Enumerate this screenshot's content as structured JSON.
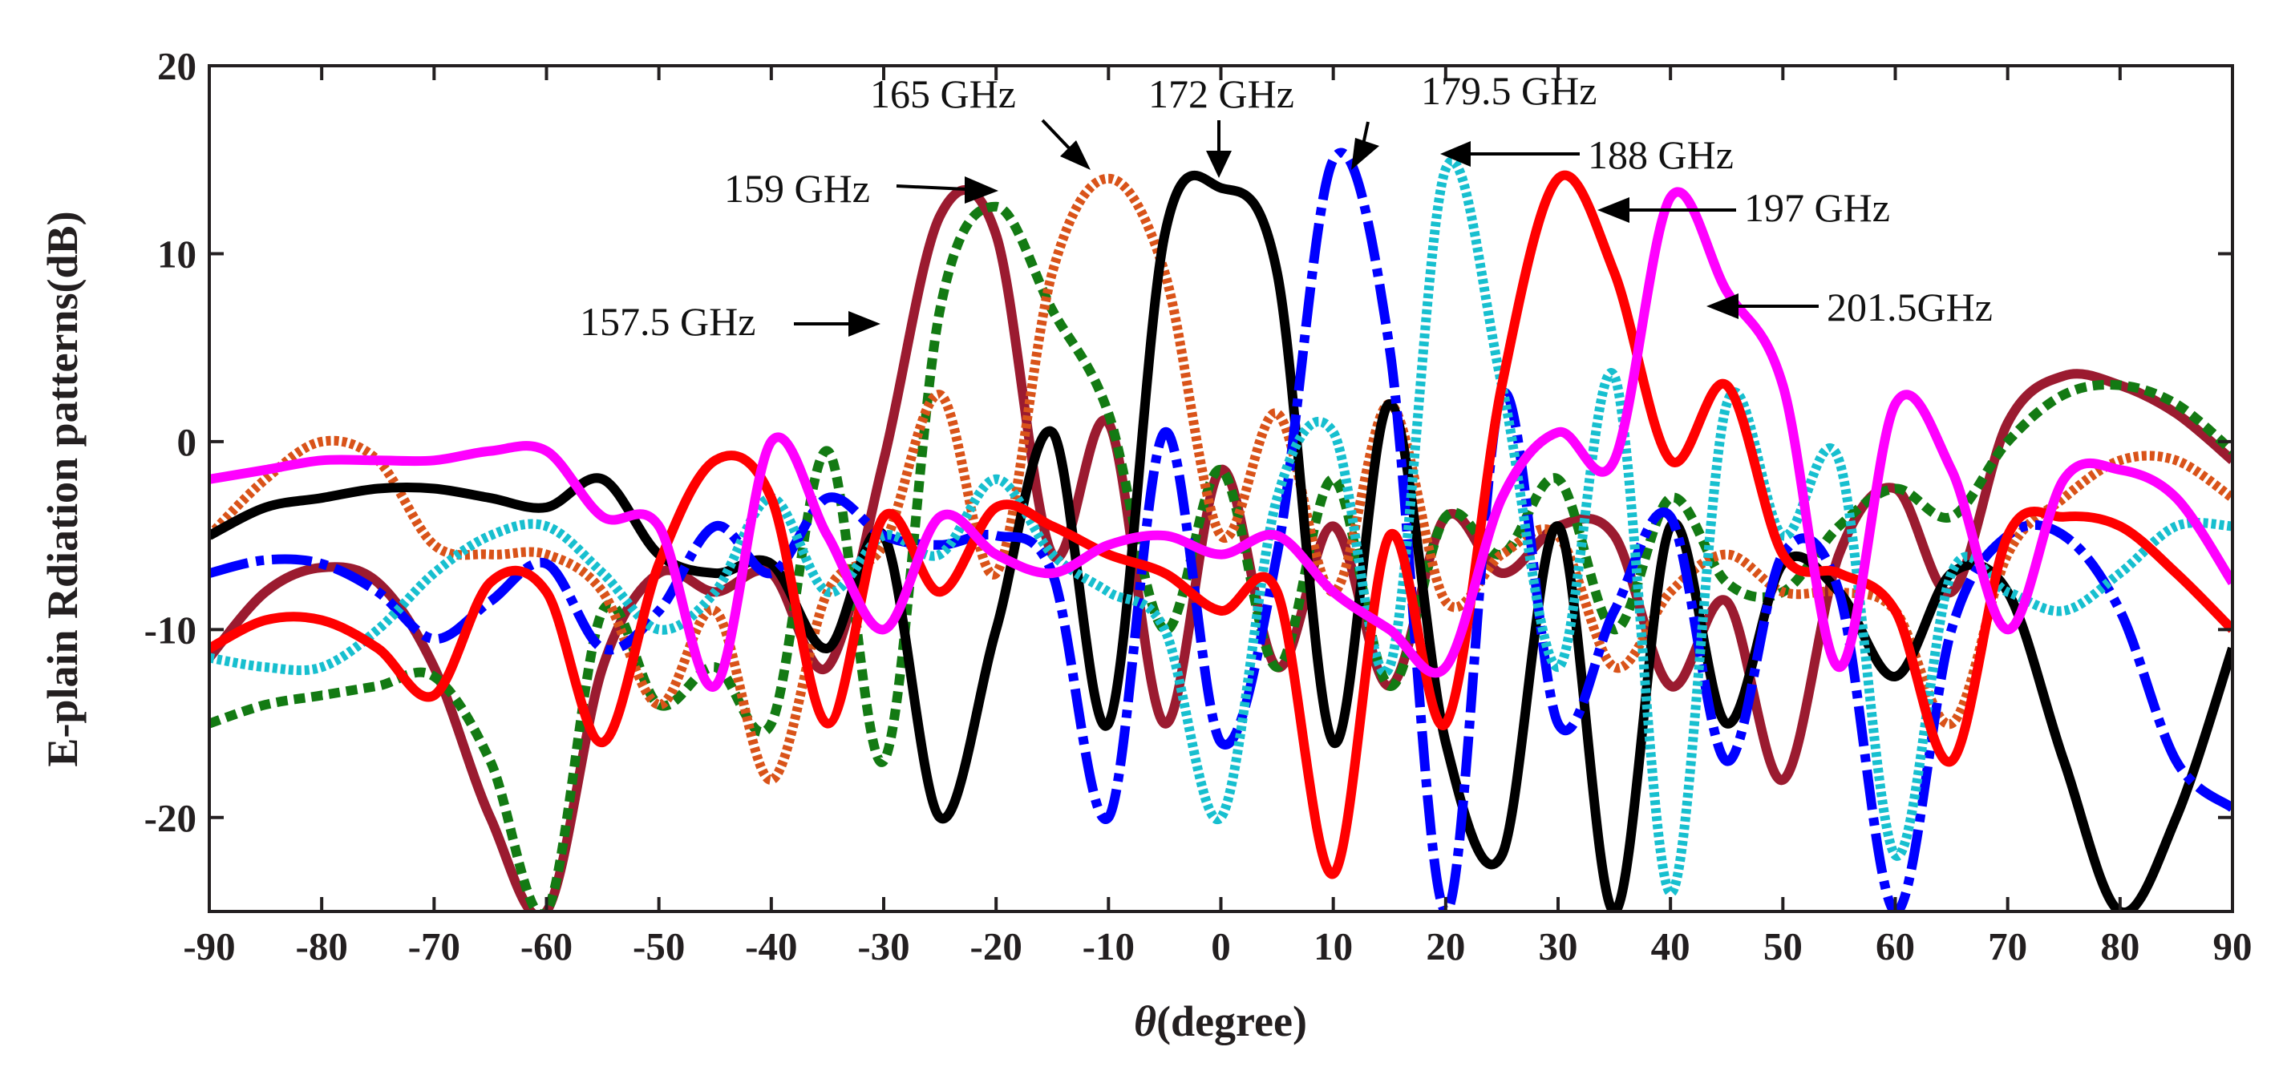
{
  "chart_data": {
    "type": "line",
    "xlabel_symbol": "θ",
    "xlabel_text": "(degree)",
    "ylabel": "E-plain Rdiation patterns(dB)",
    "xlim": [
      -90,
      90
    ],
    "ylim": [
      -25,
      20
    ],
    "xticks": [
      -90,
      -80,
      -70,
      -60,
      -50,
      -40,
      -30,
      -20,
      -10,
      0,
      10,
      20,
      30,
      40,
      50,
      60,
      70,
      80,
      90
    ],
    "yticks": [
      20,
      10,
      0,
      -10,
      -20
    ],
    "x": [
      -90,
      -85,
      -80,
      -75,
      -70,
      -65,
      -60,
      -55,
      -50,
      -45,
      -40,
      -35,
      -30,
      -25,
      -20,
      -15,
      -10,
      -5,
      0,
      5,
      10,
      15,
      20,
      25,
      30,
      35,
      40,
      45,
      50,
      55,
      60,
      65,
      70,
      75,
      80,
      85,
      90
    ],
    "series": [
      {
        "name": "157.5 GHz",
        "color": "#9b1b30",
        "dash": "solid",
        "values": [
          -11.5,
          -8,
          -6.7,
          -7.5,
          -12,
          -20,
          -25,
          -12,
          -7,
          -8,
          -7,
          -12,
          -1,
          12,
          11,
          -6,
          1,
          -15,
          -1.5,
          -12,
          -4.5,
          -13,
          -4,
          -7,
          -4.5,
          -5,
          -13,
          -8.5,
          -18,
          -6,
          -2.5,
          -8,
          1,
          3.5,
          3,
          1.5,
          -1
        ]
      },
      {
        "name": "159 GHz",
        "color": "#137a13",
        "dash": "14 8",
        "values": [
          -15,
          -14,
          -13.5,
          -13,
          -12.5,
          -17,
          -25,
          -9,
          -14,
          -12,
          -15,
          -0.5,
          -17,
          7,
          12.5,
          7,
          1.5,
          -10,
          -1.5,
          -12,
          -2,
          -13,
          -4,
          -6,
          -2,
          -10,
          -3,
          -7.5,
          -8,
          -4.5,
          -2.5,
          -4,
          0,
          2.5,
          3,
          2,
          -0.5
        ]
      },
      {
        "name": "165 GHz",
        "color": "#d95319",
        "dash": "6 4",
        "values": [
          -5,
          -2,
          0,
          -1,
          -5.5,
          -6,
          -6,
          -8,
          -14,
          -9,
          -18,
          -8,
          -5.5,
          2.5,
          -7,
          9,
          14,
          9,
          -5,
          1.5,
          -8,
          2,
          -8.5,
          -6,
          -5,
          -12,
          -8,
          -6,
          -8,
          -8,
          -9,
          -15,
          -6,
          -3,
          -1,
          -1,
          -3
        ]
      },
      {
        "name": "172 GHz",
        "color": "#000000",
        "dash": "solid",
        "values": [
          -5,
          -3.5,
          -3,
          -2.5,
          -2.5,
          -3,
          -3.5,
          -2,
          -6,
          -7,
          -6.5,
          -11,
          -5,
          -20,
          -10,
          0.5,
          -15,
          11,
          13.5,
          9,
          -16,
          2,
          -16,
          -22,
          -4.5,
          -25,
          -4.5,
          -15,
          -6.5,
          -8,
          -12.5,
          -7,
          -8,
          -17,
          -25,
          -20,
          -11
        ]
      },
      {
        "name": "179.5 GHz",
        "color": "#0000ff",
        "dash": "50 10 10 10",
        "values": [
          -7,
          -6.3,
          -6.5,
          -8,
          -10.5,
          -8.5,
          -6.5,
          -11,
          -9,
          -4.5,
          -7,
          -3,
          -5,
          -5.5,
          -5,
          -7,
          -20,
          0.5,
          -16,
          -6,
          15,
          5,
          -25,
          2.5,
          -15,
          -9,
          -4,
          -17,
          -6,
          -8,
          -25,
          -10,
          -5,
          -5,
          -9,
          -17,
          -19.5
        ]
      },
      {
        "name": "188 GHz",
        "color": "#17bfcf",
        "dash": "6 4",
        "values": [
          -11.5,
          -12,
          -12,
          -10,
          -7,
          -5,
          -4.5,
          -7,
          -10,
          -8,
          -3,
          -8,
          -5,
          -6,
          -2,
          -6,
          -8,
          -10,
          -20,
          -3,
          0.5,
          -12,
          14.5,
          3,
          -12,
          3.5,
          -24,
          2,
          -5,
          -1,
          -22,
          -7,
          -8,
          -9,
          -7,
          -4.5,
          -4.5
        ]
      },
      {
        "name": "197 GHz",
        "color": "#ff0000",
        "dash": "solid",
        "values": [
          -11,
          -9.5,
          -9.5,
          -11,
          -13.5,
          -7.5,
          -8,
          -16,
          -6.5,
          -1,
          -3,
          -15,
          -4,
          -8,
          -3.5,
          -4.5,
          -6,
          -7,
          -9,
          -8,
          -23,
          -5,
          -15,
          3,
          14,
          9,
          -1,
          3,
          -6,
          -7,
          -9,
          -17,
          -5,
          -4,
          -4.5,
          -7,
          -10
        ]
      },
      {
        "name": "201.5 GHz",
        "color": "#ff00ff",
        "dash": "solid",
        "values": [
          -2,
          -1.5,
          -1,
          -1,
          -1,
          -0.5,
          -0.5,
          -4,
          -4.5,
          -13,
          0,
          -5,
          -10,
          -4,
          -6,
          -7,
          -5.5,
          -5,
          -6,
          -5,
          -8,
          -10,
          -12,
          -3,
          0.5,
          -1,
          13,
          8,
          3,
          -12,
          2,
          -1.5,
          -10,
          -2,
          -1.5,
          -3,
          -7.5
        ]
      }
    ],
    "annotations": [
      {
        "text": "165 GHz"
      },
      {
        "text": "172 GHz"
      },
      {
        "text": "179.5 GHz"
      },
      {
        "text": "188 GHz"
      },
      {
        "text": "159 GHz"
      },
      {
        "text": "197 GHz"
      },
      {
        "text": "201.5GHz"
      },
      {
        "text": "157.5 GHz"
      }
    ]
  }
}
